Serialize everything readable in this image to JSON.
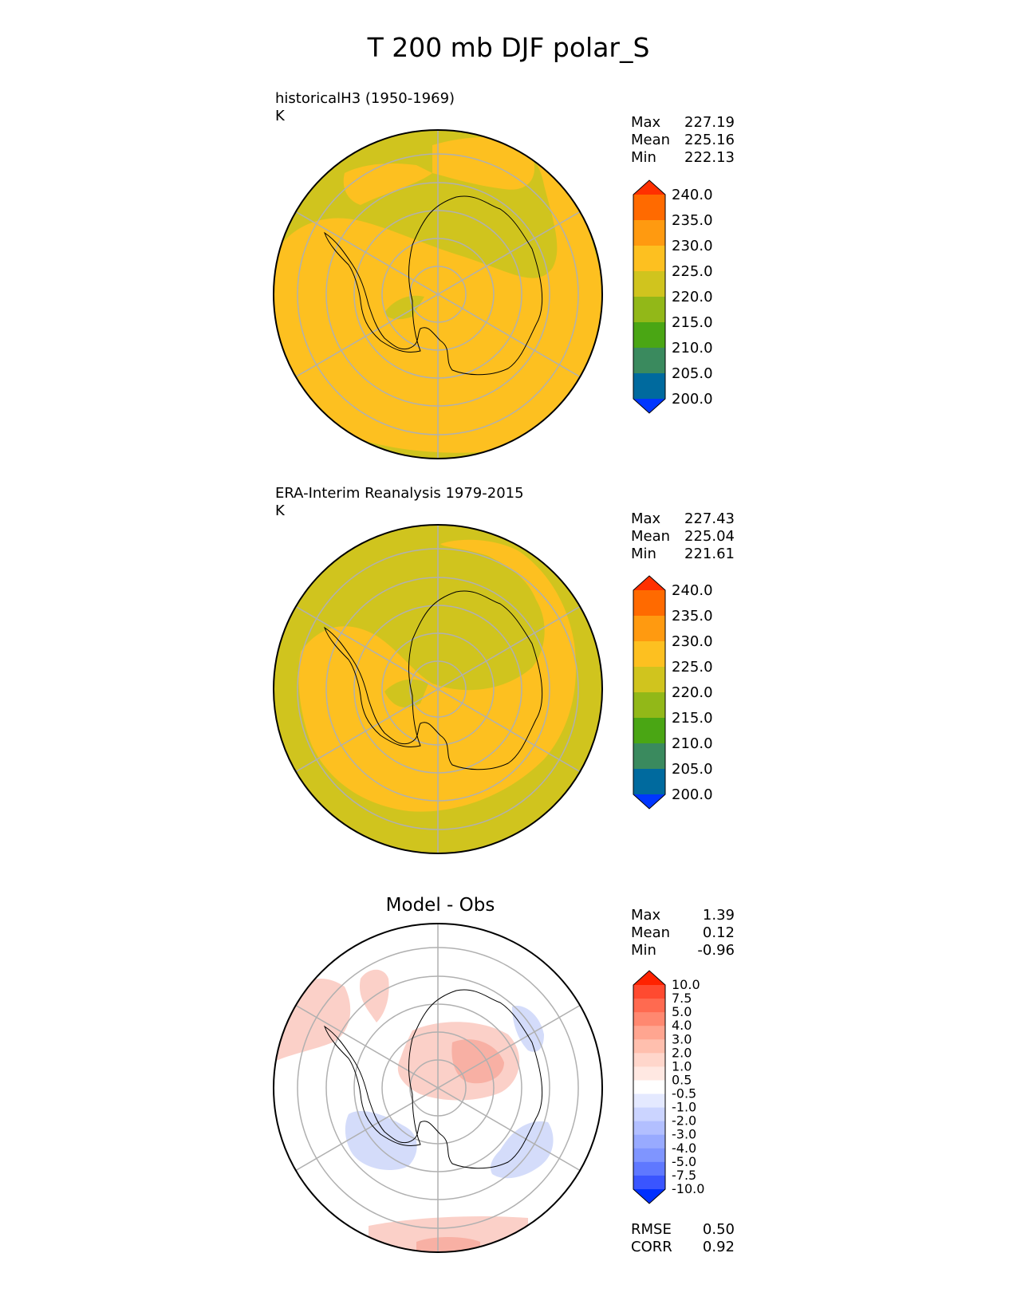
{
  "title": "T 200 mb DJF polar_S",
  "panels": [
    {
      "id": "model",
      "title": "historicalH3 (1950-1969)",
      "units": "K",
      "stats": [
        {
          "label": "Max",
          "value": "227.19"
        },
        {
          "label": "Mean",
          "value": "225.16"
        },
        {
          "label": "Min",
          "value": "222.13"
        }
      ]
    },
    {
      "id": "obs",
      "title": "ERA-Interim Reanalysis 1979-2015",
      "units": "K",
      "stats": [
        {
          "label": "Max",
          "value": "227.43"
        },
        {
          "label": "Mean",
          "value": "225.04"
        },
        {
          "label": "Min",
          "value": "221.61"
        }
      ]
    },
    {
      "id": "diff",
      "title": "Model - Obs",
      "units": "",
      "stats": [
        {
          "label": "Max",
          "value": "1.39"
        },
        {
          "label": "Mean",
          "value": "0.12"
        },
        {
          "label": "Min",
          "value": "-0.96"
        }
      ],
      "metrics": [
        {
          "label": "RMSE",
          "value": "0.50"
        },
        {
          "label": "CORR",
          "value": "0.92"
        }
      ]
    }
  ],
  "colorbar_main": {
    "labels": [
      "240.0",
      "235.0",
      "230.0",
      "225.0",
      "220.0",
      "215.0",
      "210.0",
      "205.0",
      "200.0"
    ],
    "colors": [
      "#ff3000",
      "#ff6a00",
      "#ff9a10",
      "#fdc020",
      "#d0c41e",
      "#92b818",
      "#4aa614",
      "#3a8a5e",
      "#006a9e",
      "#0036ff"
    ]
  },
  "colorbar_diff": {
    "labels": [
      "10.0",
      "7.5",
      "5.0",
      "4.0",
      "3.0",
      "2.0",
      "1.0",
      "0.5",
      "-0.5",
      "-1.0",
      "-2.0",
      "-3.0",
      "-4.0",
      "-5.0",
      "-7.5",
      "-10.0"
    ],
    "colors": [
      "#ff2200",
      "#ff4a30",
      "#ff6a50",
      "#ff8870",
      "#ffa590",
      "#ffbfae",
      "#ffd6cb",
      "#ffe8e2",
      "#ffffff",
      "#e4e9ff",
      "#cbd4ff",
      "#b2bfff",
      "#98aaff",
      "#7f95ff",
      "#5f78ff",
      "#3a55ff",
      "#0030ff"
    ]
  },
  "map_colors": {
    "band_220_225": "#d0c41e",
    "band_225_230": "#fdc020",
    "diff_pos": "#fbd0c8",
    "diff_pos_strong": "#f8b0a4",
    "diff_neg": "#d4dcfa",
    "gridline": "#b0b0b0",
    "coastline": "#000000"
  }
}
